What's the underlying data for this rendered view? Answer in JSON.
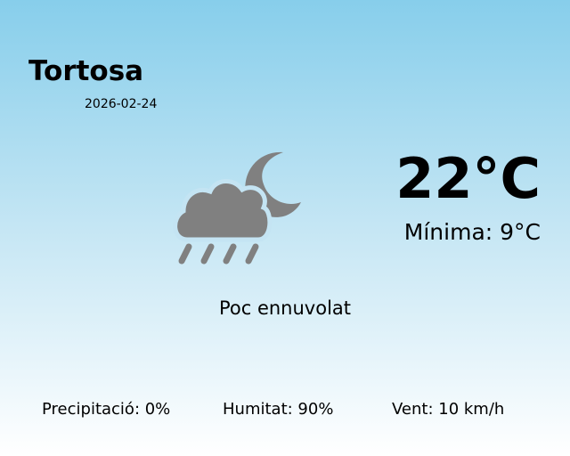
{
  "location": {
    "city": "Tortosa",
    "date": "2026-02-24"
  },
  "current": {
    "temperature": "22°C",
    "minimum": "Mínima: 9°C",
    "condition": "Poc ennuvolat",
    "icon": "cloud-moon-rain-icon",
    "icon_color": "#808080"
  },
  "stats": {
    "precipitation": "Precipitació: 0%",
    "humidity": "Humitat: 90%",
    "wind": "Vent: 10 km/h"
  },
  "colors": {
    "background_top": "#87ceeb",
    "background_bottom": "#ffffff"
  }
}
